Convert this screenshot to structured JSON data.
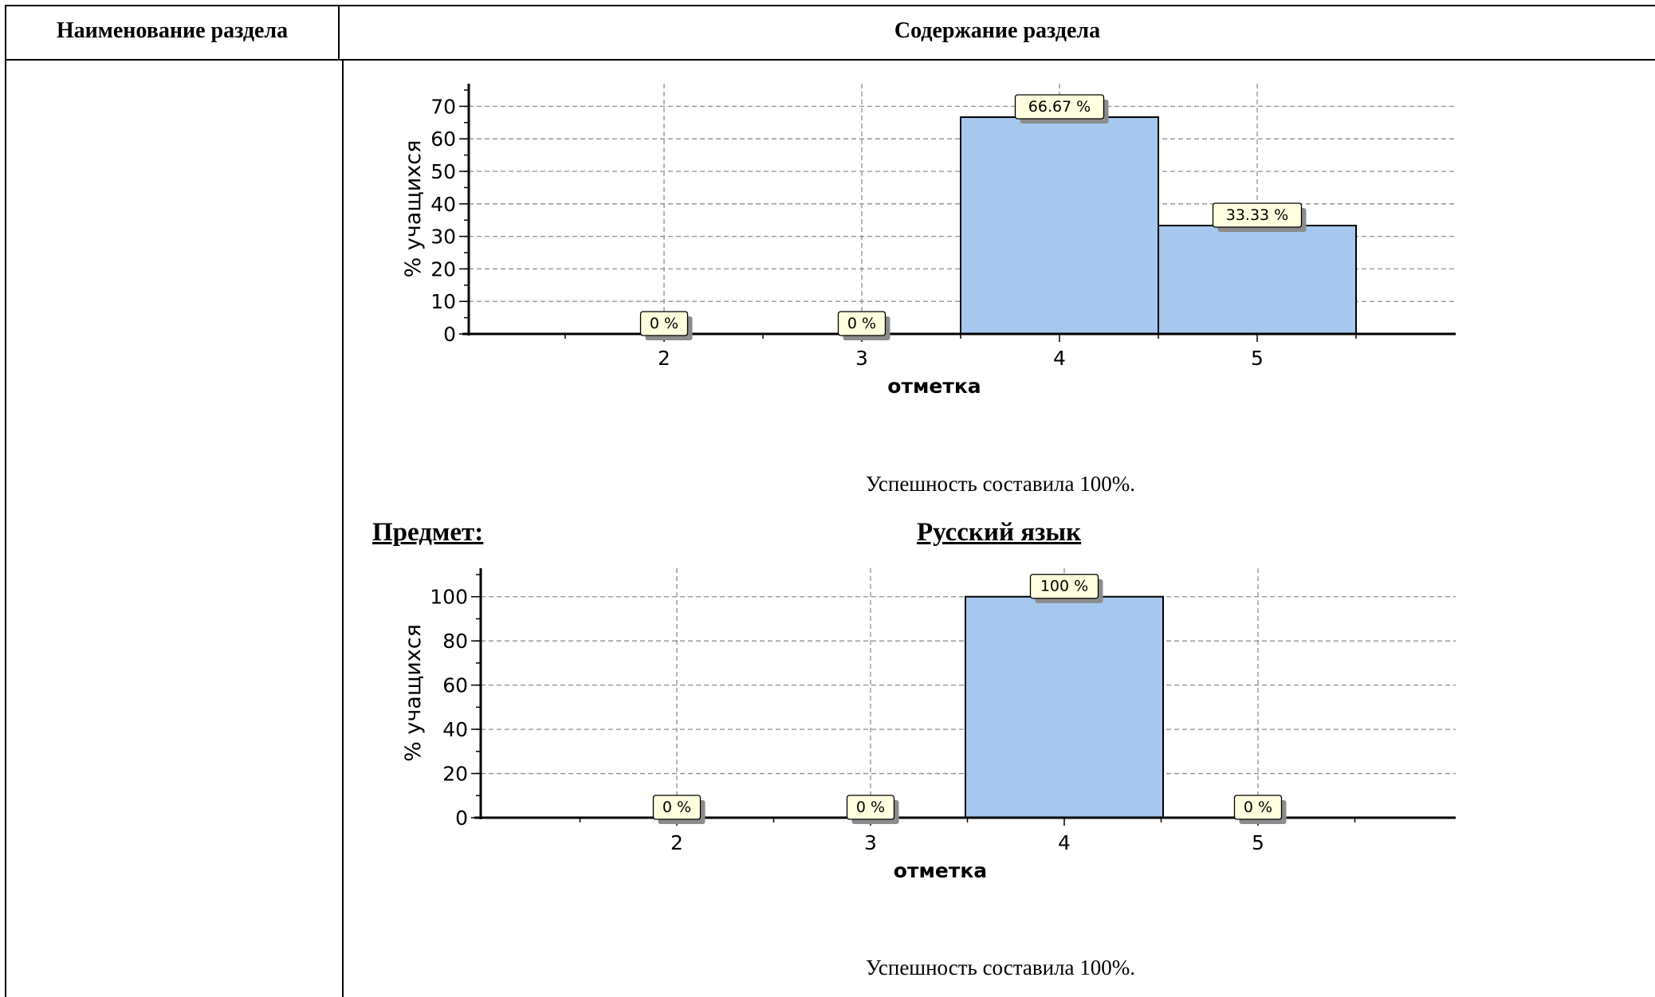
{
  "table": {
    "header_left": "Наименование раздела",
    "header_right": "Содержание раздела"
  },
  "colors": {
    "bar_fill": "#a6c8ee",
    "bar_stroke": "#000000",
    "label_fill": "#ffffdf",
    "label_shadow": "#8c8c8c",
    "grid": "#8f8f8f"
  },
  "section1": {
    "result_text": "Успешность составила 100%."
  },
  "section2": {
    "subject_label": "Предмет:",
    "subject_name": "Русский язык",
    "result_text": "Успешность составила 100%."
  },
  "chart_data": [
    {
      "type": "bar",
      "categories": [
        "2",
        "3",
        "4",
        "5"
      ],
      "values": [
        0,
        0,
        66.67,
        33.33
      ],
      "data_labels": [
        "0 %",
        "0 %",
        "66.67 %",
        "33.33 %"
      ],
      "xlabel": "отметка",
      "ylabel": "% учащихся",
      "yticks": [
        "0",
        "10",
        "20",
        "30",
        "40",
        "50",
        "60",
        "70"
      ],
      "ylim": [
        0,
        75
      ],
      "grid": true
    },
    {
      "type": "bar",
      "categories": [
        "2",
        "3",
        "4",
        "5"
      ],
      "values": [
        0,
        0,
        100,
        0
      ],
      "data_labels": [
        "0 %",
        "0 %",
        "100 %",
        "0 %"
      ],
      "xlabel": "отметка",
      "ylabel": "% учащихся",
      "yticks": [
        "0",
        "20",
        "40",
        "60",
        "80",
        "100"
      ],
      "ylim": [
        0,
        110
      ],
      "grid": true
    }
  ]
}
